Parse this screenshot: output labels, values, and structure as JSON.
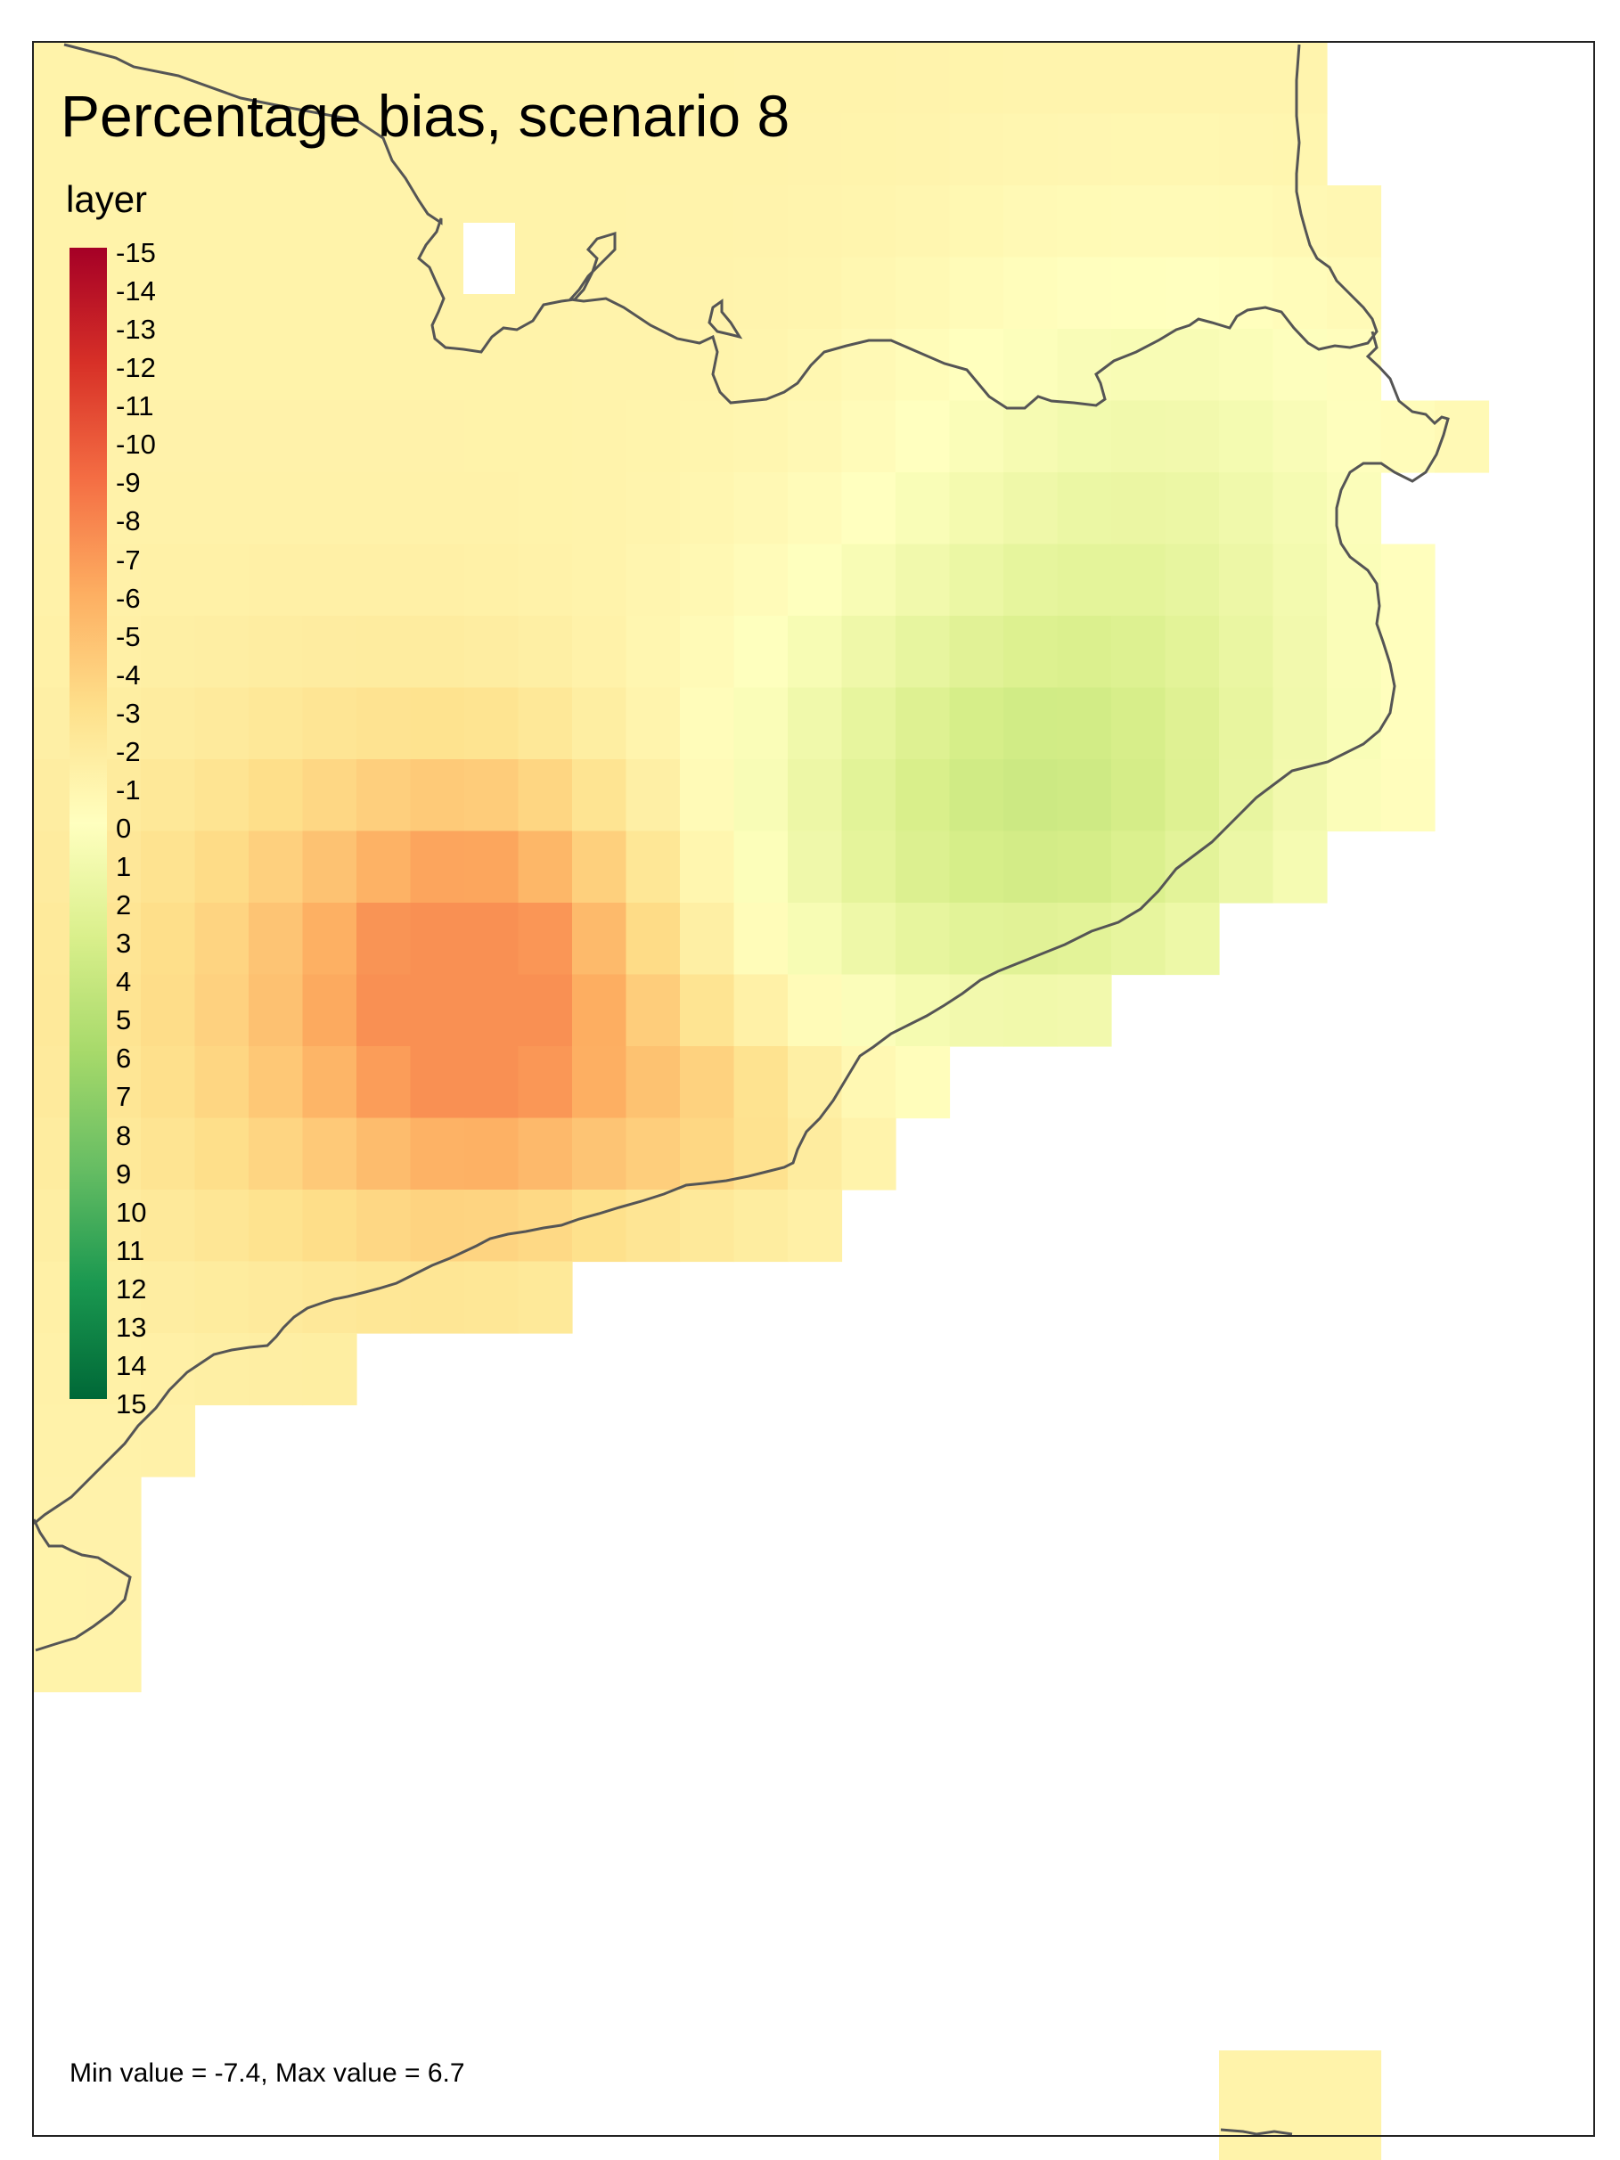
{
  "title": "Percentage bias, scenario 8",
  "legend": {
    "title": "layer",
    "labels": [
      "-15",
      "-14",
      "-13",
      "-12",
      "-11",
      "-10",
      "-9",
      "-8",
      "-7",
      "-6",
      "-5",
      "-4",
      "-3",
      "-2",
      "-1",
      "0",
      "1",
      "2",
      "3",
      "4",
      "5",
      "6",
      "7",
      "8",
      "9",
      "10",
      "11",
      "12",
      "13",
      "14",
      "15"
    ],
    "scale_min": -15,
    "scale_max": 15,
    "palette": [
      "#a50026",
      "#d73027",
      "#f46d43",
      "#fdae61",
      "#fee08b",
      "#ffffbf",
      "#d9ef8b",
      "#a6d96a",
      "#66bd63",
      "#1a9850",
      "#006837"
    ]
  },
  "footnote": "Min value = -7.4, Max value = 6.7",
  "stats": {
    "min": -7.4,
    "max": 6.7
  }
}
